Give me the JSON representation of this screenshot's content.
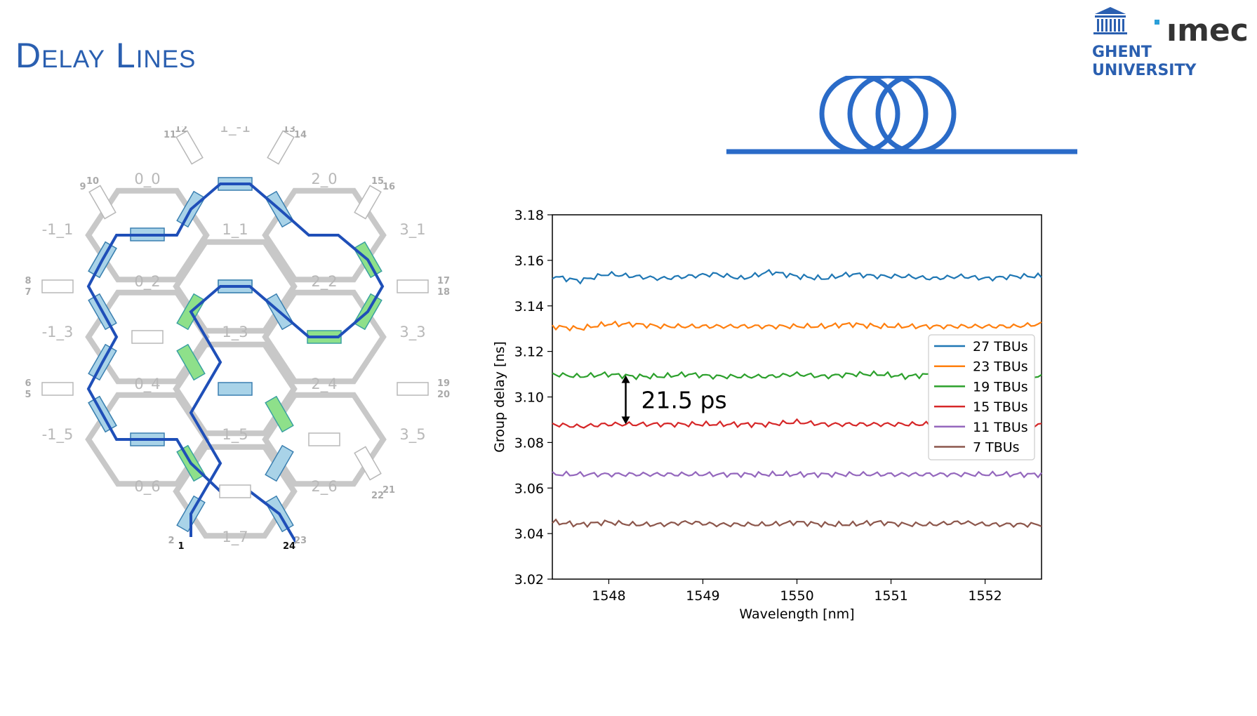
{
  "slide": {
    "title": "Delay Lines"
  },
  "logos": {
    "ghent_line1": "GHENT",
    "ghent_line2": "UNIVERSITY",
    "imec": "ımec"
  },
  "mesh": {
    "cell_labels": [
      "0_0",
      "1_-1",
      "2_0",
      "-1_1",
      "1_1",
      "3_1",
      "0_2",
      "2_2",
      "-1_3",
      "1_3",
      "3_3",
      "0_4",
      "2_4",
      "-1_5",
      "1_5",
      "3_5",
      "0_6",
      "2_6",
      "1_7"
    ],
    "port_labels": [
      "11",
      "12",
      "13",
      "14",
      "9",
      "10",
      "15",
      "16",
      "8",
      "7",
      "17",
      "18",
      "6",
      "5",
      "19",
      "20",
      "22",
      "21",
      "2",
      "1",
      "24",
      "23"
    ]
  },
  "colors": {
    "title": "#2a5fb0",
    "path": "#1f4fb8",
    "tunable_blue": "#a9d3e8",
    "tunable_green": "#8ee08a",
    "coil": "#2a6bc8"
  },
  "chart_data": {
    "type": "line",
    "xlabel": "Wavelength [nm]",
    "ylabel": "Group delay [ns]",
    "xlim": [
      1547.4,
      1552.6
    ],
    "ylim": [
      3.02,
      3.18
    ],
    "xticks": [
      1548,
      1549,
      1550,
      1551,
      1552
    ],
    "yticks": [
      3.02,
      3.04,
      3.06,
      3.08,
      3.1,
      3.12,
      3.14,
      3.16,
      3.18
    ],
    "legend_position": "center-right",
    "series": [
      {
        "name": "27 TBUs",
        "color": "#1f77b4",
        "level": 3.153,
        "values": [
          3.153,
          3.151,
          3.154,
          3.153,
          3.152,
          3.153,
          3.154,
          3.152,
          3.155,
          3.153,
          3.152,
          3.154,
          3.153,
          3.153,
          3.152,
          3.153,
          3.152,
          3.153,
          3.153
        ]
      },
      {
        "name": "23 TBUs",
        "color": "#ff7f0e",
        "level": 3.131,
        "values": [
          3.131,
          3.13,
          3.132,
          3.132,
          3.131,
          3.131,
          3.131,
          3.131,
          3.131,
          3.131,
          3.131,
          3.132,
          3.131,
          3.131,
          3.131,
          3.131,
          3.131,
          3.131,
          3.132
        ]
      },
      {
        "name": "19 TBUs",
        "color": "#2ca02c",
        "level": 3.109,
        "values": [
          3.11,
          3.109,
          3.11,
          3.109,
          3.109,
          3.11,
          3.109,
          3.109,
          3.109,
          3.11,
          3.109,
          3.11,
          3.11,
          3.109,
          3.11,
          3.11,
          3.109,
          3.11,
          3.109
        ]
      },
      {
        "name": "15 TBUs",
        "color": "#d62728",
        "level": 3.088,
        "values": [
          3.088,
          3.087,
          3.088,
          3.088,
          3.088,
          3.088,
          3.088,
          3.088,
          3.088,
          3.089,
          3.088,
          3.088,
          3.088,
          3.088,
          3.088,
          3.087,
          3.088,
          3.088,
          3.088
        ]
      },
      {
        "name": "11 TBUs",
        "color": "#9467bd",
        "level": 3.066,
        "values": [
          3.066,
          3.066,
          3.066,
          3.066,
          3.066,
          3.066,
          3.066,
          3.066,
          3.066,
          3.066,
          3.066,
          3.066,
          3.066,
          3.066,
          3.066,
          3.066,
          3.066,
          3.066,
          3.066
        ]
      },
      {
        "name": "7 TBUs",
        "color": "#8c564b",
        "level": 3.044,
        "values": [
          3.045,
          3.044,
          3.045,
          3.044,
          3.044,
          3.045,
          3.044,
          3.044,
          3.044,
          3.045,
          3.044,
          3.044,
          3.045,
          3.044,
          3.044,
          3.045,
          3.044,
          3.044,
          3.044
        ]
      }
    ],
    "annotation": {
      "text": "21.5 ps",
      "x": 1548.18,
      "y_top": 3.1095,
      "y_bottom": 3.088
    }
  }
}
